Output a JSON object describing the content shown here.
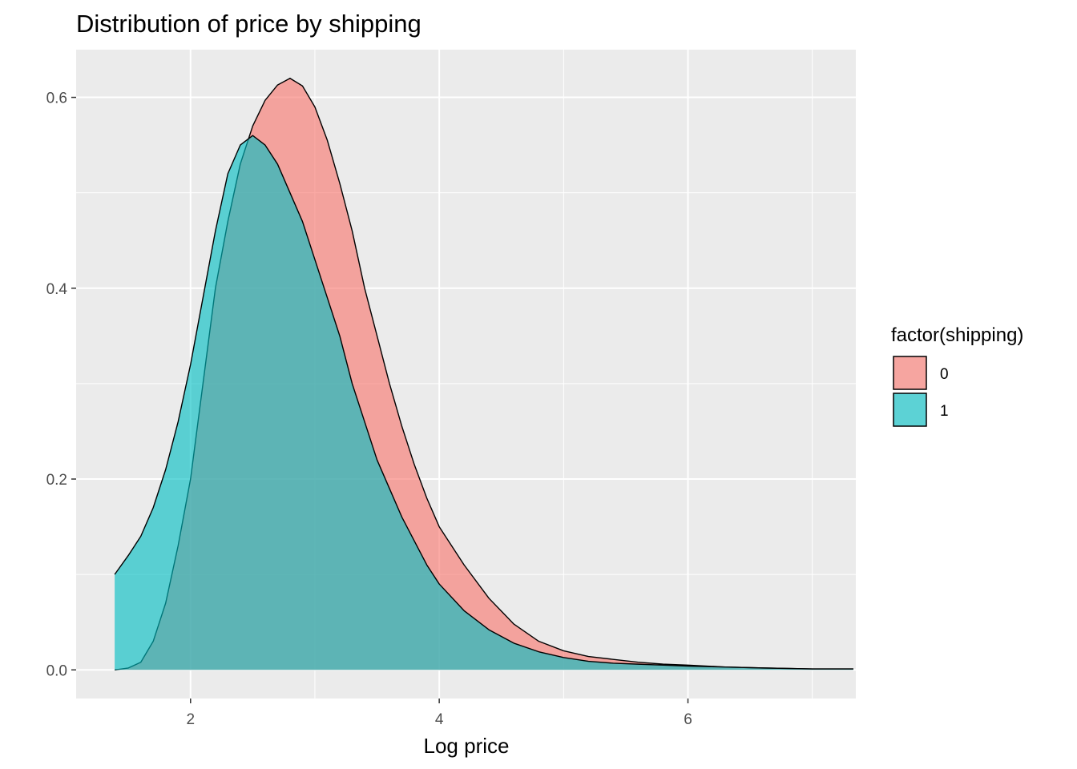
{
  "chart_data": {
    "type": "area",
    "title": "Distribution of price by shipping",
    "xlabel": "Log price",
    "ylabel": "",
    "xlim": [
      1.08,
      7.35
    ],
    "ylim": [
      -0.03,
      0.65
    ],
    "x_ticks": [
      2,
      4,
      6
    ],
    "x_tick_labels": [
      "2",
      "4",
      "6"
    ],
    "y_ticks": [
      0.0,
      0.2,
      0.4,
      0.6
    ],
    "y_tick_labels": [
      "0.0",
      "0.2",
      "0.4",
      "0.6"
    ],
    "grid": true,
    "legend": {
      "title": "factor(shipping)",
      "position": "right",
      "entries": [
        "0",
        "1"
      ]
    },
    "series": [
      {
        "name": "0",
        "color": "#F8766D",
        "x": [
          1.39,
          1.5,
          1.6,
          1.7,
          1.8,
          1.9,
          2.0,
          2.1,
          2.2,
          2.3,
          2.4,
          2.5,
          2.6,
          2.7,
          2.8,
          2.9,
          3.0,
          3.1,
          3.2,
          3.3,
          3.4,
          3.5,
          3.6,
          3.7,
          3.8,
          3.9,
          4.0,
          4.2,
          4.4,
          4.6,
          4.8,
          5.0,
          5.2,
          5.4,
          5.6,
          5.8,
          6.0,
          6.3,
          6.6,
          7.0,
          7.33
        ],
        "y": [
          0.0,
          0.002,
          0.008,
          0.03,
          0.07,
          0.13,
          0.2,
          0.3,
          0.4,
          0.47,
          0.53,
          0.57,
          0.597,
          0.613,
          0.62,
          0.612,
          0.59,
          0.555,
          0.51,
          0.46,
          0.4,
          0.35,
          0.3,
          0.255,
          0.215,
          0.18,
          0.15,
          0.11,
          0.075,
          0.048,
          0.03,
          0.02,
          0.014,
          0.011,
          0.008,
          0.006,
          0.005,
          0.003,
          0.002,
          0.001,
          0.001
        ]
      },
      {
        "name": "1",
        "color": "#00BFC4",
        "x": [
          1.39,
          1.5,
          1.6,
          1.7,
          1.8,
          1.9,
          2.0,
          2.1,
          2.2,
          2.3,
          2.4,
          2.5,
          2.6,
          2.7,
          2.8,
          2.9,
          3.0,
          3.1,
          3.2,
          3.3,
          3.4,
          3.5,
          3.6,
          3.7,
          3.8,
          3.9,
          4.0,
          4.2,
          4.4,
          4.6,
          4.8,
          5.0,
          5.2,
          5.4,
          5.6,
          5.8,
          6.0,
          6.3,
          6.6,
          7.0,
          7.33
        ],
        "y": [
          0.1,
          0.12,
          0.14,
          0.17,
          0.21,
          0.26,
          0.32,
          0.39,
          0.46,
          0.52,
          0.55,
          0.56,
          0.55,
          0.53,
          0.5,
          0.47,
          0.43,
          0.39,
          0.35,
          0.3,
          0.26,
          0.22,
          0.19,
          0.16,
          0.135,
          0.11,
          0.09,
          0.062,
          0.042,
          0.028,
          0.019,
          0.013,
          0.009,
          0.007,
          0.006,
          0.005,
          0.004,
          0.003,
          0.002,
          0.001,
          0.001
        ]
      }
    ]
  }
}
